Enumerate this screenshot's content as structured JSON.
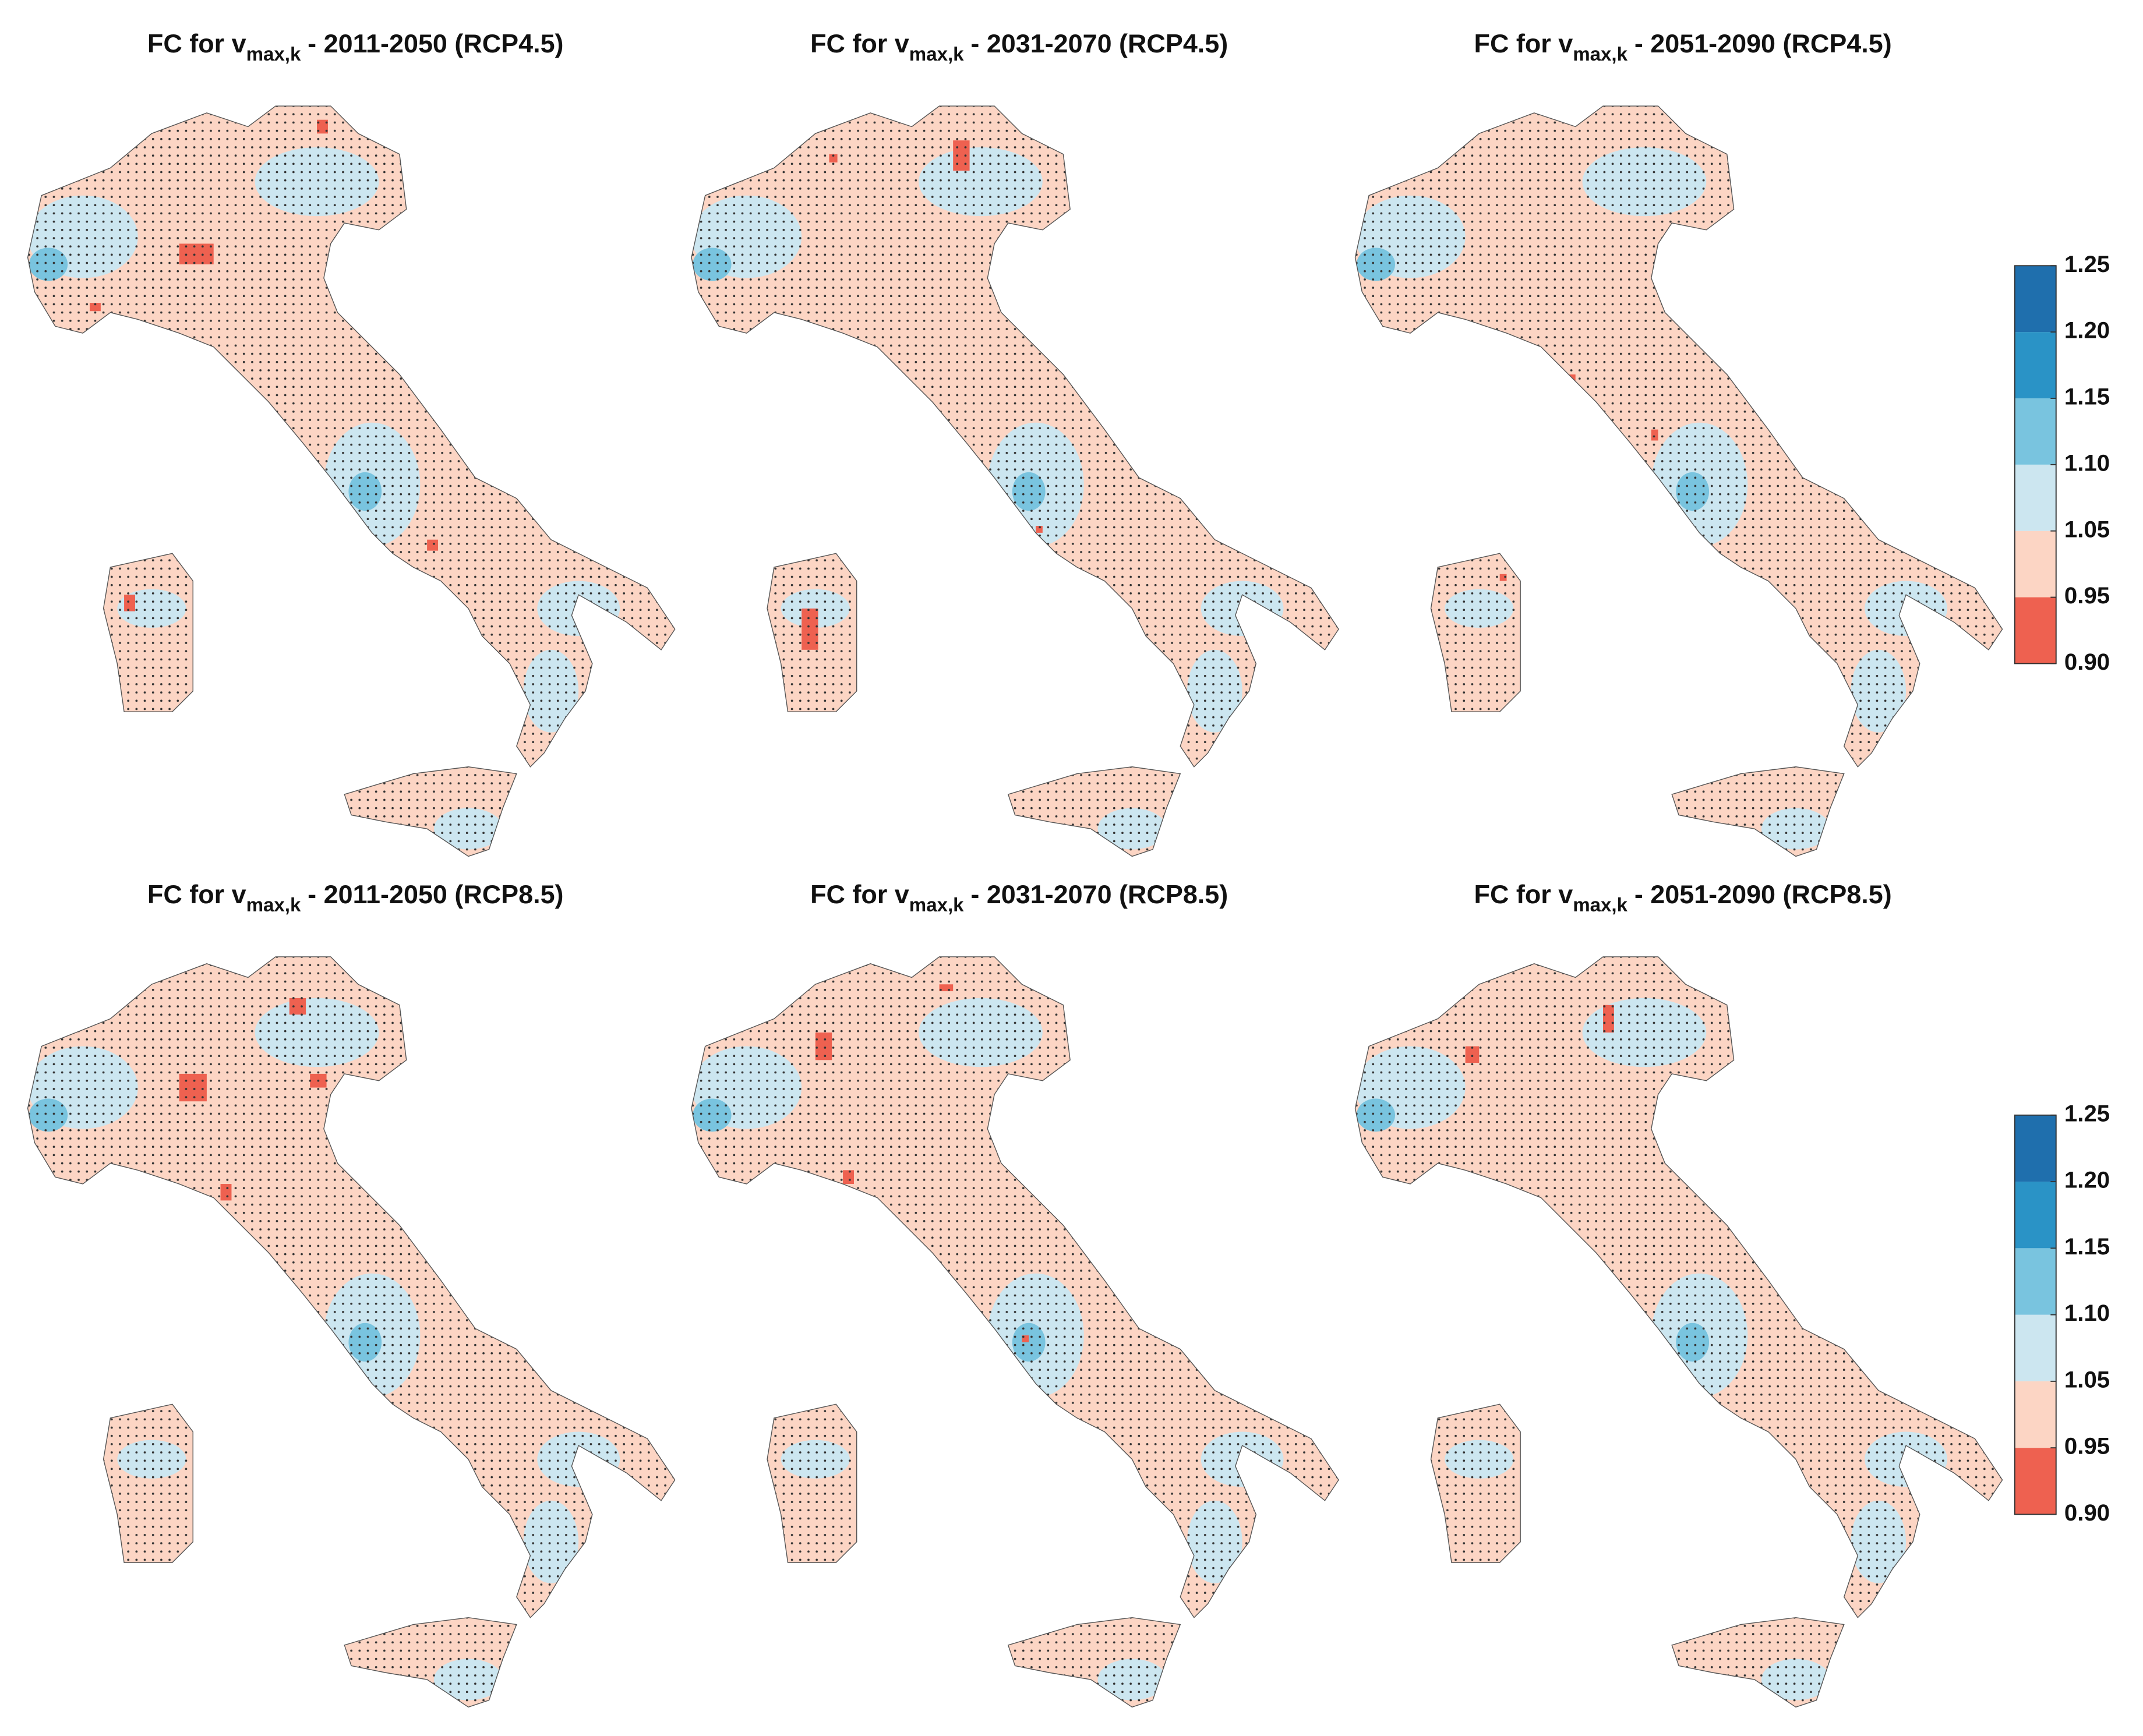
{
  "panels": [
    {
      "title": {
        "prefix": "FC for v",
        "subscript": "max,k",
        "suffix": "- 2011-2050 (RCP4.5)"
      }
    },
    {
      "title": {
        "prefix": "FC for v",
        "subscript": "max,k",
        "suffix": "- 2031-2070 (RCP4.5)"
      }
    },
    {
      "title": {
        "prefix": "FC for v",
        "subscript": "max,k",
        "suffix": "- 2051-2090 (RCP4.5)"
      }
    },
    {
      "title": {
        "prefix": "FC for v",
        "subscript": "max,k",
        "suffix": "- 2011-2050 (RCP8.5)"
      }
    },
    {
      "title": {
        "prefix": "FC for v",
        "subscript": "max,k",
        "suffix": "- 2031-2070 (RCP8.5)"
      }
    },
    {
      "title": {
        "prefix": "FC for v",
        "subscript": "max,k",
        "suffix": "- 2051-2090 (RCP8.5)"
      }
    }
  ],
  "colorbars": [
    {
      "ticks": [
        {
          "value": 0.9,
          "label": "0.90"
        },
        0.95,
        1.05,
        {
          "value": 1.1,
          "label": "1.10"
        },
        1.15,
        {
          "value": 1.2,
          "label": "1.20"
        },
        1.25
      ],
      "colors": [
        "#ee6150",
        "#fcd5c4",
        "#cce6f0",
        "#79c4df",
        "#2a93c6",
        "#1f6fad"
      ]
    },
    {
      "ticks": [
        {
          "value": 0.9,
          "label": "0.90"
        },
        0.95,
        1.05,
        {
          "value": 1.1,
          "label": "1.10"
        },
        1.15,
        {
          "value": 1.2,
          "label": "1.20"
        },
        1.25
      ],
      "colors": [
        "#ee6150",
        "#fcd5c4",
        "#cce6f0",
        "#79c4df",
        "#2a93c6",
        "#1f6fad"
      ]
    }
  ]
}
